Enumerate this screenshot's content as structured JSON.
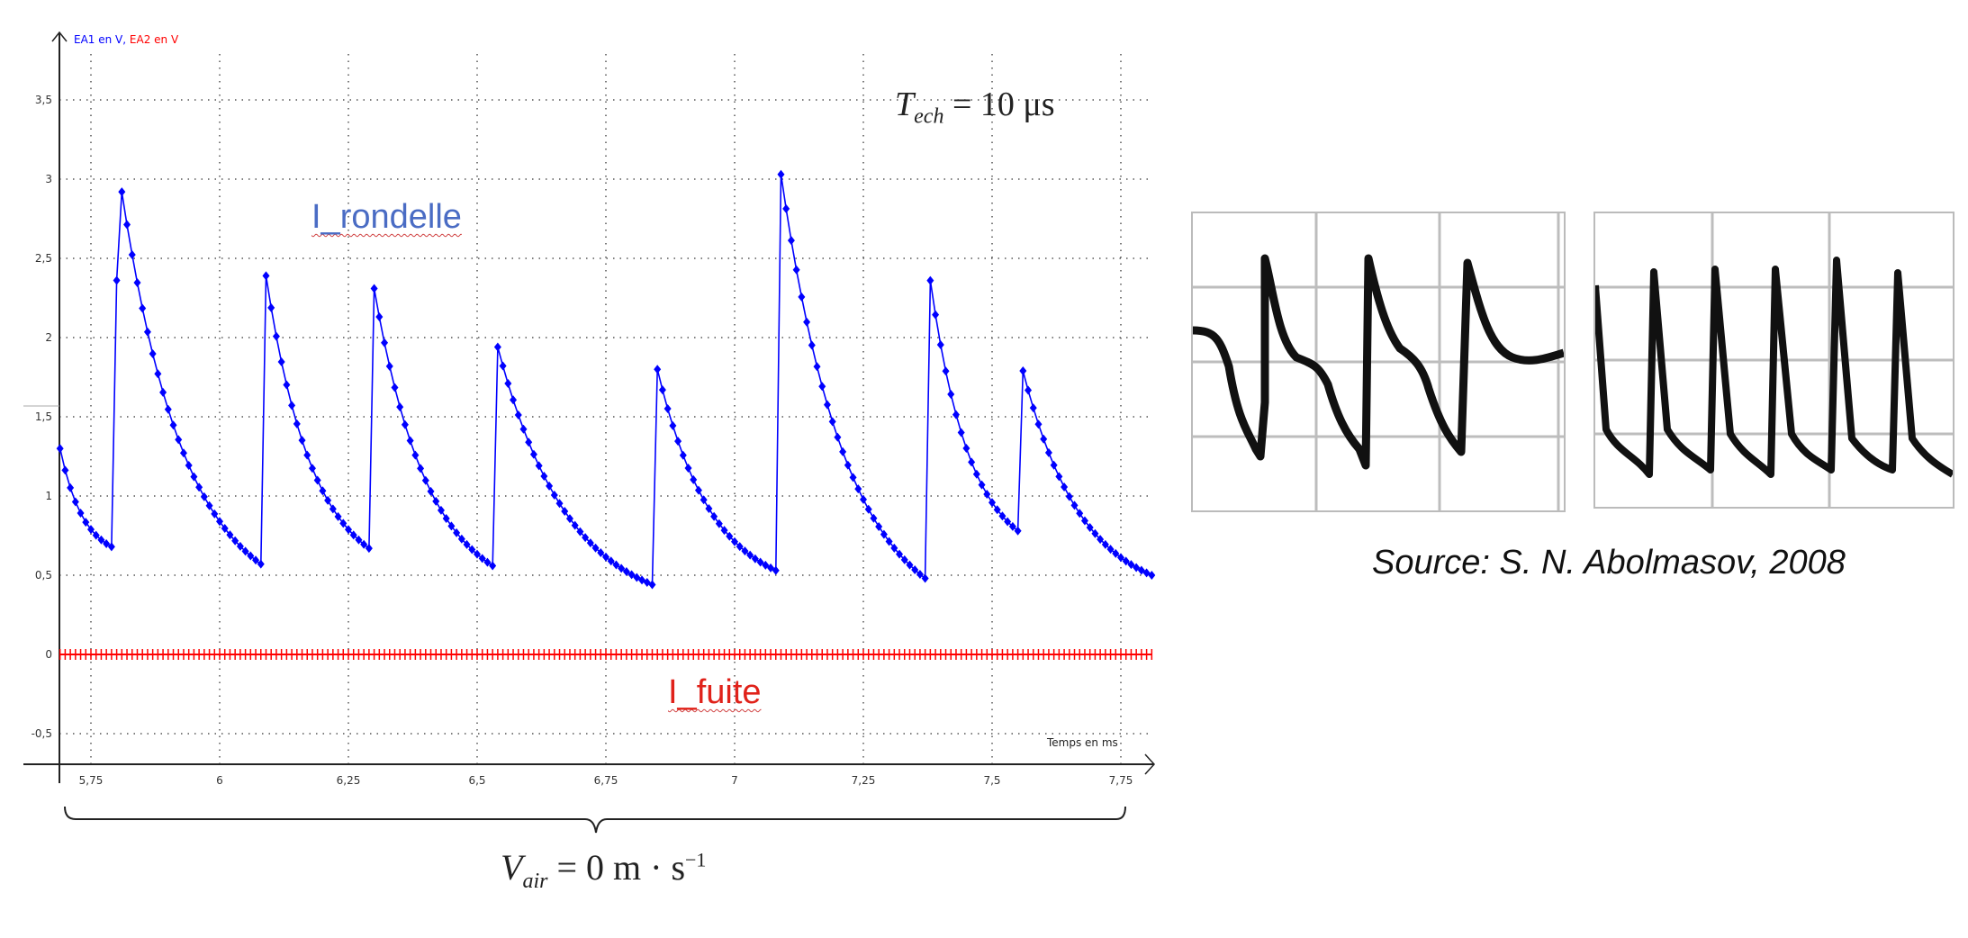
{
  "chart_data": {
    "type": "line",
    "title": "",
    "xlabel": "Temps en ms",
    "ylabel": "EA1 en V, EA2 en V",
    "xlim": [
      5.69,
      7.82
    ],
    "ylim": [
      -0.7,
      3.85
    ],
    "grid": true,
    "x_ticks": [
      "5,75",
      "6",
      "6,25",
      "6,5",
      "6,75",
      "7",
      "7,25",
      "7,5",
      "7,75"
    ],
    "x_tick_values": [
      5.75,
      6.0,
      6.25,
      6.5,
      6.75,
      7.0,
      7.25,
      7.5,
      7.75
    ],
    "y_ticks": [
      "-0,5",
      "0",
      "0,5",
      "1",
      "1,5",
      "2",
      "2,5",
      "3",
      "3,5"
    ],
    "y_tick_values": [
      -0.5,
      0,
      0.5,
      1,
      1.5,
      2,
      2.5,
      3,
      3.5
    ],
    "sample_period_us": 10,
    "series": [
      {
        "name": "EA1 en V",
        "label": "I_rondelle",
        "color": "#0000ff",
        "marker": "diamond",
        "keypoints": [
          {
            "t": 5.69,
            "v": 1.3
          },
          {
            "t": 5.79,
            "v": 0.68
          },
          {
            "t": 5.81,
            "v": 2.92
          },
          {
            "t": 6.08,
            "v": 0.57
          },
          {
            "t": 6.09,
            "v": 2.39
          },
          {
            "t": 6.29,
            "v": 0.67
          },
          {
            "t": 6.3,
            "v": 2.31
          },
          {
            "t": 6.53,
            "v": 0.56
          },
          {
            "t": 6.54,
            "v": 1.94
          },
          {
            "t": 6.84,
            "v": 0.44
          },
          {
            "t": 6.85,
            "v": 1.8
          },
          {
            "t": 7.08,
            "v": 0.53
          },
          {
            "t": 7.09,
            "v": 3.03
          },
          {
            "t": 7.37,
            "v": 0.48
          },
          {
            "t": 7.38,
            "v": 2.36
          },
          {
            "t": 7.55,
            "v": 0.78
          },
          {
            "t": 7.56,
            "v": 1.79
          },
          {
            "t": 7.81,
            "v": 0.5
          }
        ]
      },
      {
        "name": "EA2 en V",
        "label": "I_fuite",
        "color": "#ff0000",
        "marker": "plus",
        "keypoints": [
          {
            "t": 5.69,
            "v": 0.0
          },
          {
            "t": 7.81,
            "v": 0.0
          }
        ]
      }
    ]
  },
  "plot": {
    "y_axis_title_part1": "EA1 en V",
    "y_axis_title_sep": ", ",
    "y_axis_title_part2": "EA2 en V",
    "x_axis_title": "Temps en ms",
    "colors": {
      "ea1": "#0000ff",
      "ea2": "#ff0000",
      "grid": "#555555",
      "axis": "#222222"
    }
  },
  "annotations": {
    "rondelle": "I_rondelle",
    "fuite": "I_fuite",
    "tech_T": "T",
    "tech_sub": "ech",
    "tech_rest": " = 10 μs",
    "vair_V": "V",
    "vair_sub": "air",
    "vair_rest": " = 0 m · s",
    "vair_sup": "−1"
  },
  "reference": {
    "source": "Source: S. N. Abolmasov, 2008",
    "left_image": "oscilloscope-trace-1",
    "right_image": "oscilloscope-trace-2"
  }
}
